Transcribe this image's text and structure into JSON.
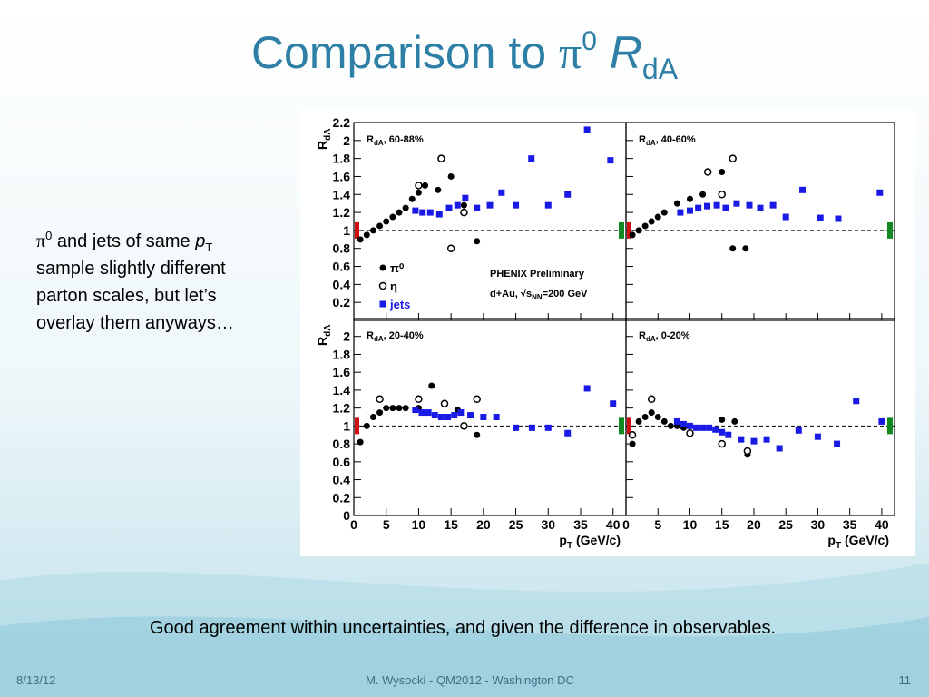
{
  "title": {
    "text": "Comparison to ",
    "pi": "π",
    "sup": "0",
    "r": " R",
    "sub": "dA"
  },
  "bullet": {
    "pi": "π",
    "sup": "0",
    "a": " and jets of same ",
    "p": "p",
    "sub": "T",
    "lines": [
      "sample slightly different",
      "parton scales, but let’s",
      "overlay them anyways…"
    ]
  },
  "caption": "Good agreement within uncertainties, and given the difference in observables.",
  "footer": {
    "date": "8/13/12",
    "center": "M. Wysocki - QM2012 - Washington DC",
    "page": "11"
  },
  "chart_data": [
    {
      "type": "scatter",
      "title": {
        "r": "R",
        "sub": "dA",
        "text": ", 60-88%"
      },
      "ylabel": {
        "r": "R",
        "sub": "dA"
      },
      "xlim": [
        0,
        42
      ],
      "xticks": [
        0,
        5,
        10,
        15,
        20,
        25,
        30,
        35,
        40
      ],
      "ylim": [
        0,
        2.2
      ],
      "yticks": [
        0.2,
        0.4,
        0.6,
        0.8,
        1,
        1.2,
        1.4,
        1.6,
        1.8,
        2,
        2.2
      ],
      "show_xtick_labels": false,
      "show_ytick_labels": true,
      "reference_line": 1,
      "legend": true,
      "annotations": [
        "PHENIX Preliminary"
      ],
      "energy": {
        "pre": "d+Au, ",
        "s": "√s",
        "sub": "NN",
        "post": "=200 GeV"
      },
      "series": [
        {
          "name": "π⁰",
          "color": "#000000",
          "marker": "filled-circle",
          "x": [
            1,
            2,
            3,
            4,
            5,
            6,
            7,
            8,
            9,
            10,
            11,
            13,
            15,
            17,
            19
          ],
          "values": [
            0.9,
            0.95,
            1.0,
            1.05,
            1.1,
            1.15,
            1.2,
            1.25,
            1.35,
            1.42,
            1.5,
            1.45,
            1.6,
            1.28,
            0.88
          ]
        },
        {
          "name": "η",
          "color": "#000000",
          "marker": "open-circle",
          "x": [
            10,
            13.5,
            15,
            17
          ],
          "values": [
            1.5,
            1.8,
            0.8,
            1.2
          ]
        },
        {
          "name": "jets",
          "color": "#1a1ae6",
          "marker": "square",
          "x": [
            9.5,
            10.6,
            11.8,
            13.2,
            14.7,
            16,
            17.2,
            19,
            21,
            22.8,
            25,
            27.4,
            30,
            33,
            36,
            39.6
          ],
          "values": [
            1.22,
            1.2,
            1.2,
            1.18,
            1.25,
            1.28,
            1.36,
            1.25,
            1.28,
            1.42,
            1.28,
            1.8,
            1.28,
            1.4,
            2.12,
            1.78
          ]
        }
      ]
    },
    {
      "type": "scatter",
      "title": {
        "r": "R",
        "sub": "dA",
        "text": ", 40-60%"
      },
      "xlim": [
        0,
        42
      ],
      "xticks": [
        0,
        5,
        10,
        15,
        20,
        25,
        30,
        35,
        40
      ],
      "ylim": [
        0,
        2.2
      ],
      "yticks": [
        0.2,
        0.4,
        0.6,
        0.8,
        1,
        1.2,
        1.4,
        1.6,
        1.8,
        2,
        2.2
      ],
      "show_xtick_labels": false,
      "show_ytick_labels": false,
      "reference_line": 1,
      "series": [
        {
          "name": "π⁰",
          "color": "#000000",
          "marker": "filled-circle",
          "x": [
            1,
            2,
            3,
            4,
            5,
            6,
            8,
            10,
            12,
            15,
            16.7,
            18.7
          ],
          "values": [
            0.95,
            1.0,
            1.05,
            1.1,
            1.15,
            1.2,
            1.3,
            1.35,
            1.4,
            1.65,
            0.8,
            0.8
          ]
        },
        {
          "name": "η",
          "color": "#000000",
          "marker": "open-circle",
          "x": [
            12.8,
            15,
            16.7
          ],
          "values": [
            1.65,
            1.4,
            1.8
          ]
        },
        {
          "name": "jets",
          "color": "#1a1ae6",
          "marker": "square",
          "x": [
            8.5,
            10,
            11.3,
            12.7,
            14.2,
            15.6,
            17.3,
            19.3,
            21,
            23,
            25,
            27.6,
            30.4,
            33.2,
            39.7
          ],
          "values": [
            1.2,
            1.22,
            1.25,
            1.27,
            1.28,
            1.25,
            1.3,
            1.28,
            1.25,
            1.28,
            1.15,
            1.45,
            1.14,
            1.13,
            1.42
          ]
        }
      ]
    },
    {
      "type": "scatter",
      "title": {
        "r": "R",
        "sub": "dA",
        "text": ", 20-40%"
      },
      "ylabel": {
        "r": "R",
        "sub": "dA"
      },
      "xlabel": {
        "p": "p",
        "sub": "T",
        "post": " (GeV/c)"
      },
      "xlim": [
        0,
        42
      ],
      "xticks": [
        0,
        5,
        10,
        15,
        20,
        25,
        30,
        35,
        40
      ],
      "ylim": [
        0,
        2.2
      ],
      "yticks": [
        0,
        0.2,
        0.4,
        0.6,
        0.8,
        1,
        1.2,
        1.4,
        1.6,
        1.8,
        2
      ],
      "show_xtick_labels": true,
      "show_ytick_labels": true,
      "reference_line": 1,
      "series": [
        {
          "name": "π⁰",
          "color": "#000000",
          "marker": "filled-circle",
          "x": [
            1,
            2,
            3,
            4,
            5,
            6,
            7,
            8,
            10,
            12,
            14,
            16,
            19
          ],
          "values": [
            0.82,
            1.0,
            1.1,
            1.15,
            1.2,
            1.2,
            1.2,
            1.2,
            1.2,
            1.45,
            1.25,
            1.18,
            0.9
          ]
        },
        {
          "name": "η",
          "color": "#000000",
          "marker": "open-circle",
          "x": [
            4,
            10,
            14,
            17,
            19
          ],
          "values": [
            1.3,
            1.3,
            1.25,
            1.0,
            1.3
          ]
        },
        {
          "name": "jets",
          "color": "#1a1ae6",
          "marker": "square",
          "x": [
            9.5,
            10.5,
            11.5,
            12.5,
            13.5,
            14.5,
            15.5,
            16.5,
            18,
            20,
            22,
            25,
            27.5,
            30,
            33,
            36,
            40
          ],
          "values": [
            1.18,
            1.15,
            1.15,
            1.12,
            1.1,
            1.1,
            1.12,
            1.15,
            1.12,
            1.1,
            1.1,
            0.98,
            0.98,
            0.98,
            0.92,
            1.42,
            1.25
          ]
        }
      ]
    },
    {
      "type": "scatter",
      "title": {
        "r": "R",
        "sub": "dA",
        "text": ", 0-20%"
      },
      "xlabel": {
        "p": "p",
        "sub": "T",
        "post": " (GeV/c)"
      },
      "xlim": [
        0,
        42
      ],
      "xticks": [
        0,
        5,
        10,
        15,
        20,
        25,
        30,
        35,
        40
      ],
      "ylim": [
        0,
        2.2
      ],
      "yticks": [
        0,
        0.2,
        0.4,
        0.6,
        0.8,
        1,
        1.2,
        1.4,
        1.6,
        1.8,
        2
      ],
      "show_xtick_labels": true,
      "show_ytick_labels": false,
      "reference_line": 1,
      "series": [
        {
          "name": "π⁰",
          "color": "#000000",
          "marker": "filled-circle",
          "x": [
            1,
            2,
            3,
            4,
            5,
            6,
            7,
            8,
            9,
            15,
            17,
            19
          ],
          "values": [
            0.8,
            1.05,
            1.1,
            1.15,
            1.1,
            1.05,
            1.0,
            1.0,
            0.98,
            1.07,
            1.05,
            0.68
          ]
        },
        {
          "name": "η",
          "color": "#000000",
          "marker": "open-circle",
          "x": [
            1,
            4,
            10,
            15,
            19
          ],
          "values": [
            0.9,
            1.3,
            0.92,
            0.8,
            0.72
          ]
        },
        {
          "name": "jets",
          "color": "#1a1ae6",
          "marker": "square",
          "x": [
            8,
            9,
            10,
            11,
            12,
            13,
            14,
            15,
            16,
            18,
            20,
            22,
            24,
            27,
            30,
            33,
            36,
            40
          ],
          "values": [
            1.05,
            1.02,
            1.0,
            0.98,
            0.98,
            0.98,
            0.96,
            0.93,
            0.9,
            0.85,
            0.83,
            0.85,
            0.75,
            0.95,
            0.88,
            0.8,
            1.28,
            1.05
          ]
        }
      ]
    }
  ]
}
